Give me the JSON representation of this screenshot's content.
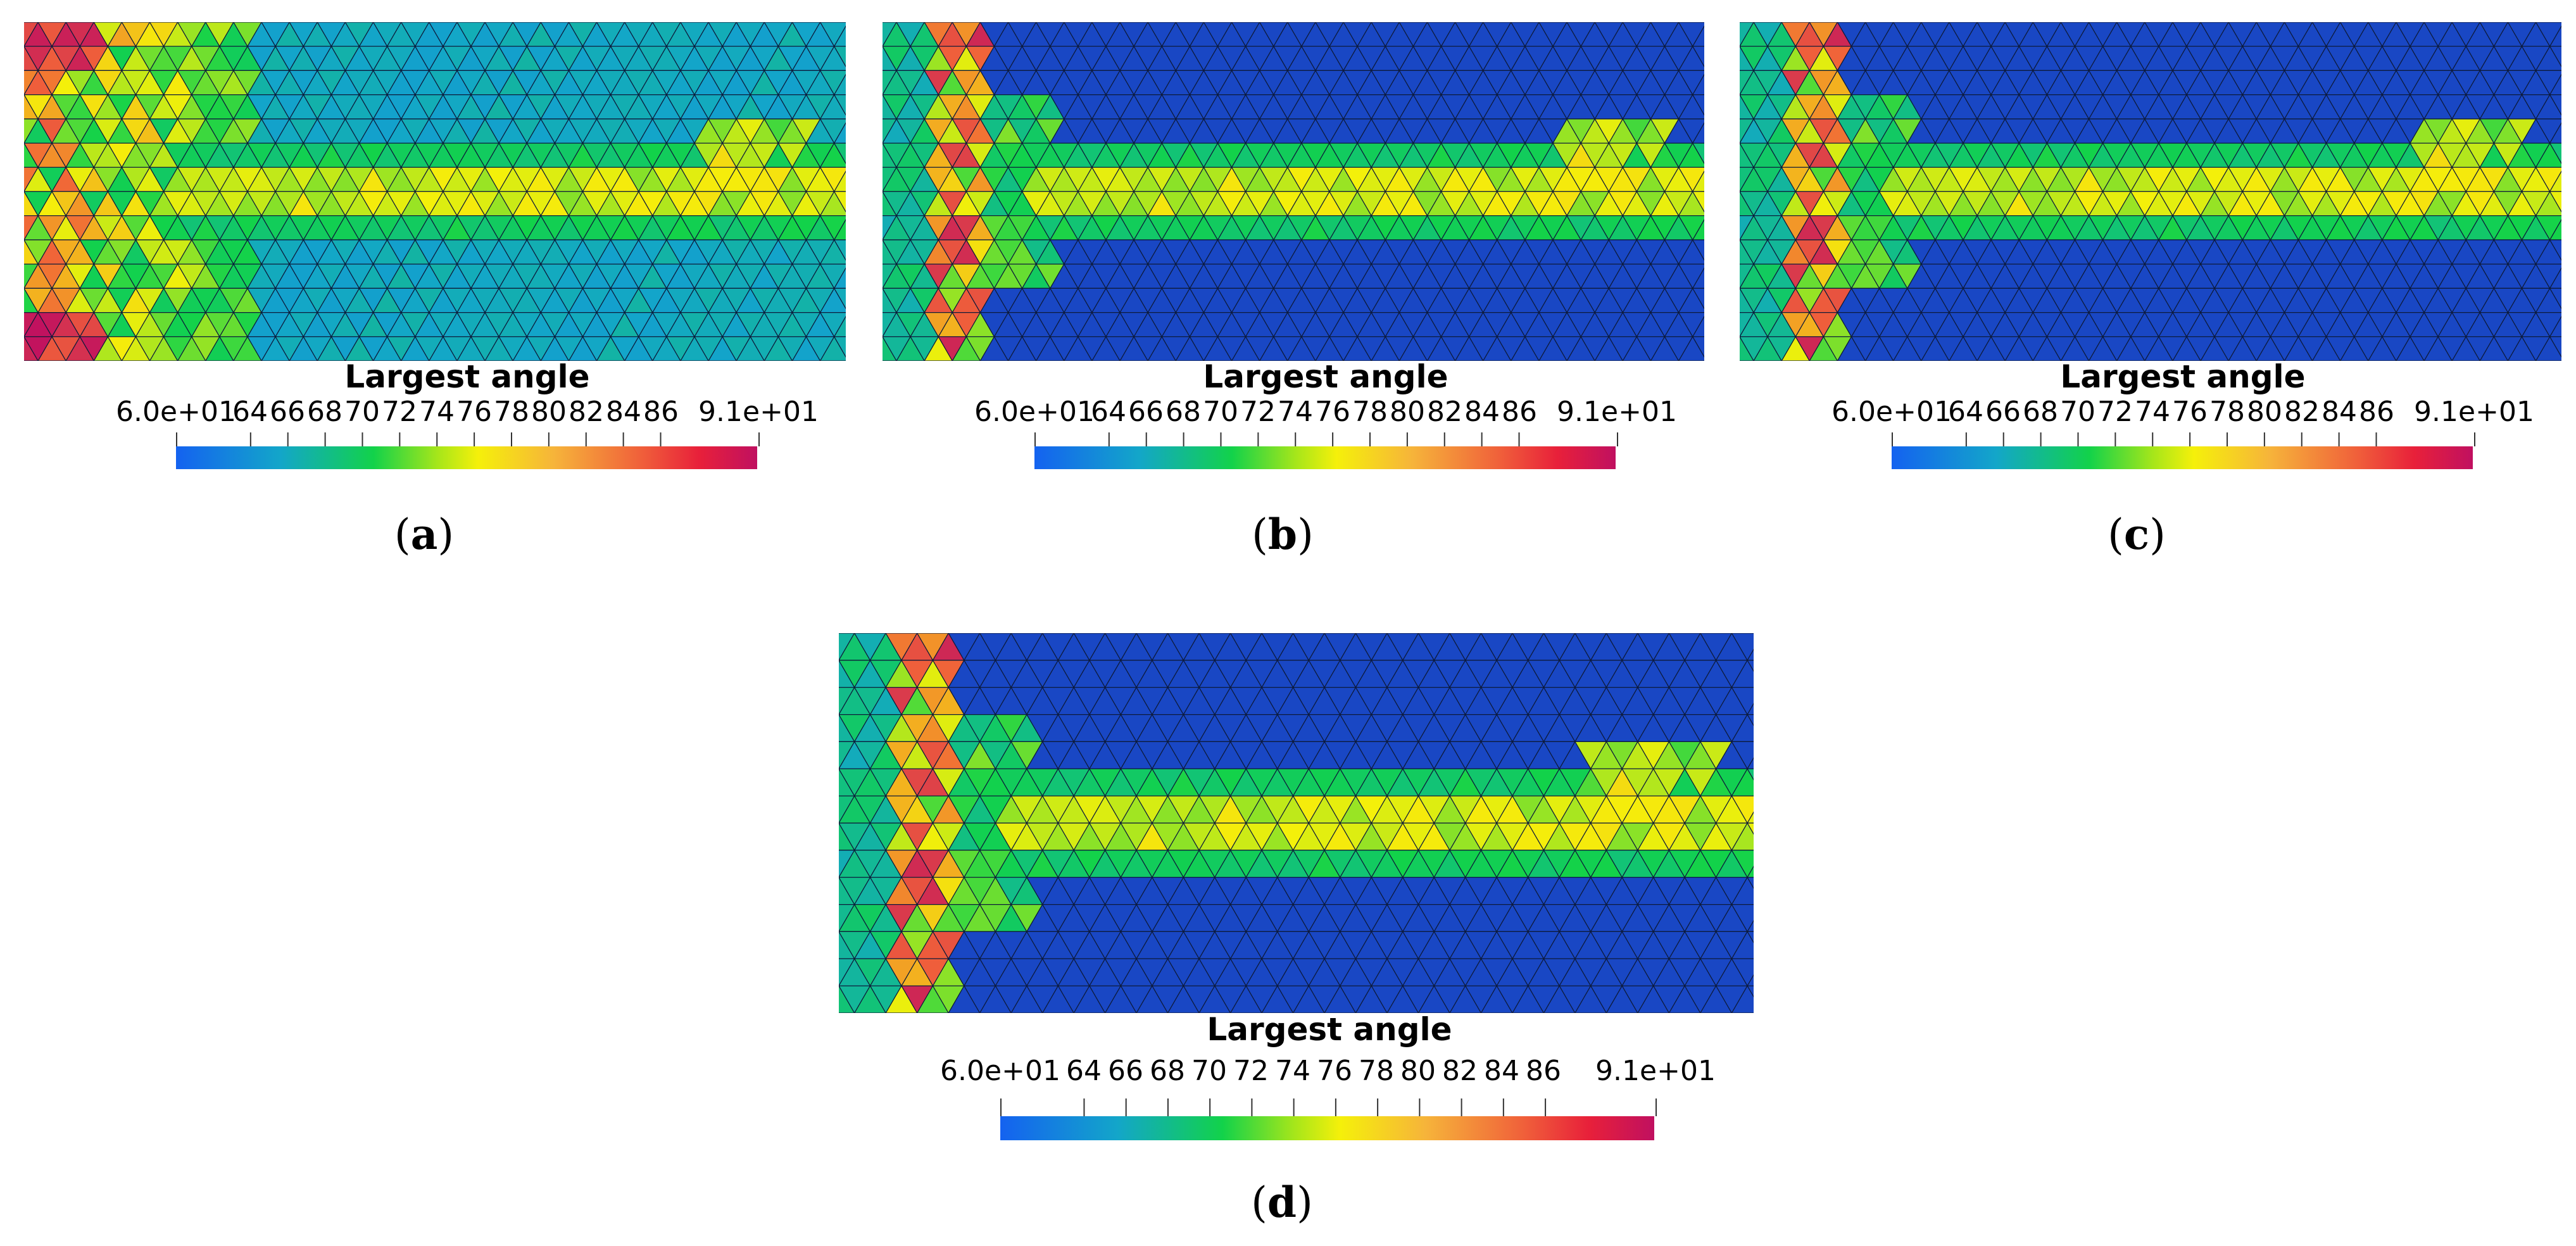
{
  "colorbar": {
    "title": "Largest angle",
    "ticks": [
      "6.0e+01",
      "64",
      "66",
      "68",
      "70",
      "72",
      "74",
      "76",
      "78",
      "80",
      "82",
      "84",
      "86",
      "9.1e+01"
    ],
    "range": [
      60,
      91
    ],
    "colors": [
      "#1462f0",
      "#13a6c9",
      "#12d24a",
      "#f5f00a",
      "#f0603a",
      "#c01060"
    ]
  },
  "panels": [
    {
      "id": "a",
      "caption_label": "a",
      "caption_open": "(",
      "caption_close": ")"
    },
    {
      "id": "b",
      "caption_label": "b",
      "caption_open": "(",
      "caption_close": ")"
    },
    {
      "id": "c",
      "caption_label": "c",
      "caption_open": "(",
      "caption_close": ")"
    },
    {
      "id": "d",
      "caption_label": "d",
      "caption_open": "(",
      "caption_close": ")"
    }
  ]
}
